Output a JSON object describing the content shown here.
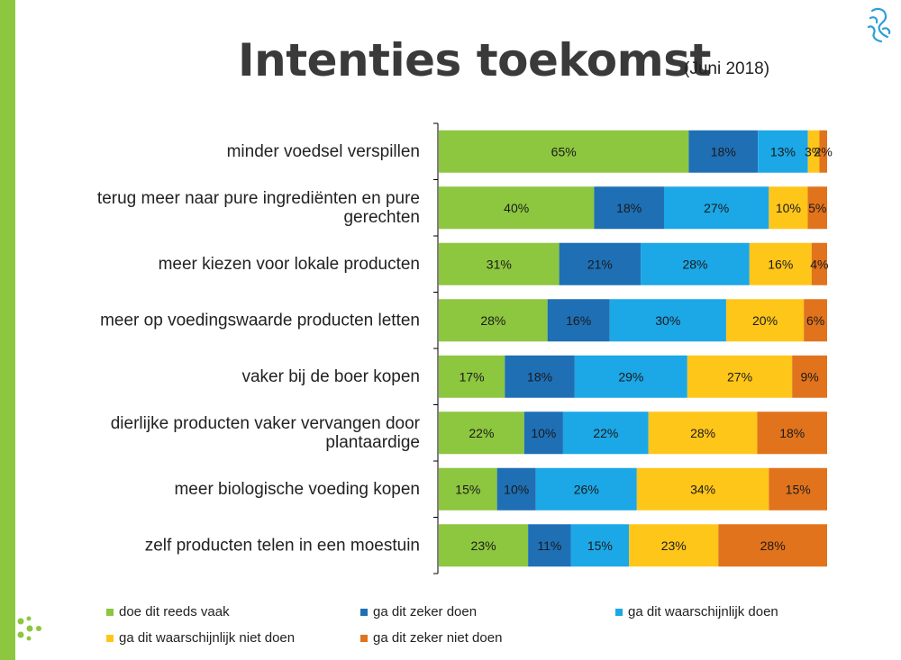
{
  "header": {
    "title": "Intenties toekomst",
    "subtitle": "(Juni 2018)"
  },
  "colors": {
    "accent_green": "#8dc63f",
    "series": [
      "#8dc63f",
      "#1f6fb5",
      "#1ca7e6",
      "#ffc61a",
      "#e1731c"
    ]
  },
  "chart_data": {
    "type": "bar",
    "orientation": "horizontal",
    "stacked": "100%",
    "categories": [
      [
        "minder voedsel verspillen"
      ],
      [
        "terug meer naar pure ingrediënten en pure",
        "gerechten"
      ],
      [
        "meer kiezen voor lokale producten"
      ],
      [
        "meer op voedingswaarde producten letten"
      ],
      [
        "vaker bij de boer kopen"
      ],
      [
        "dierlijke producten vaker vervangen door",
        "plantaardige"
      ],
      [
        "meer biologische voeding kopen"
      ],
      [
        "zelf producten telen in een moestuin"
      ]
    ],
    "series": [
      {
        "name": "doe dit reeds vaak",
        "values": [
          65,
          40,
          31,
          28,
          17,
          22,
          15,
          23
        ]
      },
      {
        "name": "ga dit zeker doen",
        "values": [
          18,
          18,
          21,
          16,
          18,
          10,
          10,
          11
        ]
      },
      {
        "name": "ga dit waarschijnlijk doen",
        "values": [
          13,
          27,
          28,
          30,
          29,
          22,
          26,
          15
        ]
      },
      {
        "name": "ga dit waarschijnlijk niet doen",
        "values": [
          3,
          10,
          16,
          20,
          27,
          28,
          34,
          23
        ]
      },
      {
        "name": "ga dit zeker niet doen",
        "values": [
          2,
          5,
          4,
          6,
          9,
          18,
          15,
          28
        ]
      }
    ],
    "value_suffix": "%",
    "legend_position": "bottom",
    "grid": false
  }
}
